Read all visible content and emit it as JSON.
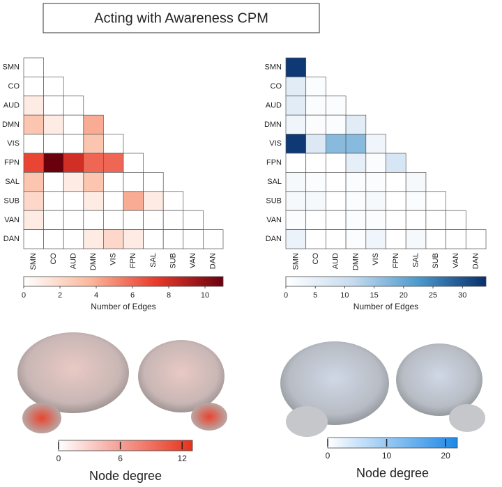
{
  "title": "Acting with Awareness CPM",
  "chart_data": [
    {
      "type": "heatmap",
      "categories": [
        "SMN",
        "CO",
        "AUD",
        "DMN",
        "VIS",
        "FPN",
        "SAL",
        "SUB",
        "VAN",
        "DAN"
      ],
      "values": [
        [
          0
        ],
        [
          0,
          0
        ],
        [
          1,
          0,
          0
        ],
        [
          3,
          1,
          0,
          4
        ],
        [
          0,
          0,
          0,
          3,
          0
        ],
        [
          7,
          11,
          8,
          6,
          6,
          0
        ],
        [
          3,
          0,
          1,
          3,
          0,
          0,
          0
        ],
        [
          2,
          0,
          0,
          1,
          0,
          4,
          1,
          0
        ],
        [
          1,
          0,
          0,
          0,
          0,
          0,
          0,
          0,
          0
        ],
        [
          0,
          0,
          0,
          1,
          2,
          1,
          0,
          0,
          0,
          0
        ]
      ],
      "colormap": [
        "#ffffff",
        "#fbb89d",
        "#e8392a",
        "#6b000d"
      ],
      "clim": [
        0,
        11
      ],
      "cticks": [
        0,
        2,
        4,
        6,
        8,
        10
      ],
      "clabel": "Number of Edges"
    },
    {
      "type": "heatmap",
      "categories": [
        "SMN",
        "CO",
        "AUD",
        "DMN",
        "VIS",
        "FPN",
        "SAL",
        "SUB",
        "VAN",
        "DAN"
      ],
      "values": [
        [
          33
        ],
        [
          6,
          1
        ],
        [
          6,
          1,
          1
        ],
        [
          3,
          1,
          1,
          6
        ],
        [
          33,
          7,
          17,
          17,
          3
        ],
        [
          0,
          0,
          0,
          5,
          1,
          8
        ],
        [
          2,
          1,
          0,
          1,
          1,
          0,
          2
        ],
        [
          2,
          2,
          0,
          1,
          2,
          0,
          1,
          0
        ],
        [
          1,
          0,
          0,
          1,
          1,
          0,
          0,
          0,
          0
        ],
        [
          4,
          0,
          0,
          1,
          3,
          0,
          2,
          0,
          0,
          0
        ]
      ],
      "colormap": [
        "#ffffff",
        "#c6dbef",
        "#4a98cc",
        "#08306b"
      ],
      "clim": [
        0,
        34
      ],
      "cticks": [
        0,
        5,
        10,
        15,
        20,
        25,
        30
      ],
      "clabel": "Number of Edges"
    },
    {
      "type": "colorbar",
      "colormap": [
        "#ffffff",
        "#e8311a"
      ],
      "clim": [
        0,
        13
      ],
      "cticks": [
        0,
        6,
        12
      ],
      "clabel": "Node degree"
    },
    {
      "type": "colorbar",
      "colormap": [
        "#ffffff",
        "#1e88e5"
      ],
      "clim": [
        0,
        22
      ],
      "cticks": [
        0,
        10,
        20
      ],
      "clabel": "Node degree"
    }
  ]
}
